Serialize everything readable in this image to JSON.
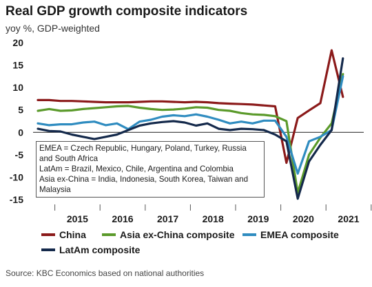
{
  "header": {
    "title": "Real GDP growth composite indicators",
    "subtitle": "yoy %, GDP-weighted"
  },
  "note": [
    "EMEA = Czech Republic, Hungary, Poland, Turkey, Russia and South Africa",
    "LatAm = Brazil, Mexico, Chile, Argentina and Colombia",
    "Asia ex-China = India, Indonesia, South Korea, Taiwan and Malaysia"
  ],
  "source": "Source: KBC Economics based on national authorities",
  "chart_data": {
    "type": "line",
    "x_unit": "quarter",
    "x": [
      "2014Q3",
      "2014Q4",
      "2015Q1",
      "2015Q2",
      "2015Q3",
      "2015Q4",
      "2016Q1",
      "2016Q2",
      "2016Q3",
      "2016Q4",
      "2017Q1",
      "2017Q2",
      "2017Q3",
      "2017Q4",
      "2018Q1",
      "2018Q2",
      "2018Q3",
      "2018Q4",
      "2019Q1",
      "2019Q2",
      "2019Q3",
      "2019Q4",
      "2020Q1",
      "2020Q2",
      "2020Q3",
      "2020Q4",
      "2021Q1",
      "2021Q2"
    ],
    "xtick_labels": [
      "2015",
      "2016",
      "2017",
      "2018",
      "2019",
      "2020",
      "2021"
    ],
    "ylim": [
      -15,
      20
    ],
    "yticks": [
      -15,
      -10,
      -5,
      0,
      5,
      10,
      15,
      20
    ],
    "grid": false,
    "legend_position": "bottom",
    "series": [
      {
        "name": "China",
        "color": "#8b1a1a",
        "values": [
          7.2,
          7.2,
          7.0,
          7.0,
          6.9,
          6.8,
          6.7,
          6.7,
          6.7,
          6.8,
          6.9,
          6.9,
          6.8,
          6.7,
          6.8,
          6.7,
          6.5,
          6.4,
          6.3,
          6.2,
          6.0,
          5.8,
          -6.8,
          3.2,
          4.9,
          6.5,
          18.3,
          7.9
        ]
      },
      {
        "name": "Asia ex-China composite",
        "color": "#5b9a2b",
        "values": [
          4.8,
          5.2,
          4.8,
          4.9,
          5.2,
          5.4,
          5.6,
          5.8,
          5.9,
          5.5,
          5.2,
          5.0,
          5.1,
          5.3,
          5.6,
          5.5,
          5.0,
          4.8,
          4.3,
          4.0,
          3.9,
          3.6,
          2.5,
          -13.5,
          -5.0,
          -1.2,
          2.0,
          13.0
        ]
      },
      {
        "name": "EMEA composite",
        "color": "#2f8cc0",
        "values": [
          2.0,
          1.6,
          1.8,
          1.8,
          2.2,
          2.4,
          1.6,
          2.0,
          0.7,
          2.4,
          2.8,
          3.5,
          3.8,
          3.6,
          4.0,
          3.5,
          2.8,
          2.0,
          2.4,
          2.0,
          2.6,
          2.6,
          -1.0,
          -9.2,
          -2.0,
          -1.0,
          0.5,
          12.5
        ]
      },
      {
        "name": "LatAm composite",
        "color": "#14294b",
        "values": [
          0.8,
          0.3,
          0.2,
          -0.5,
          -1.0,
          -1.5,
          -1.0,
          -0.5,
          0.5,
          1.5,
          2.0,
          2.3,
          2.5,
          2.2,
          1.5,
          2.0,
          0.8,
          0.5,
          0.8,
          0.7,
          0.5,
          -0.5,
          -2.0,
          -14.8,
          -6.5,
          -2.8,
          0.5,
          16.5
        ]
      }
    ]
  }
}
